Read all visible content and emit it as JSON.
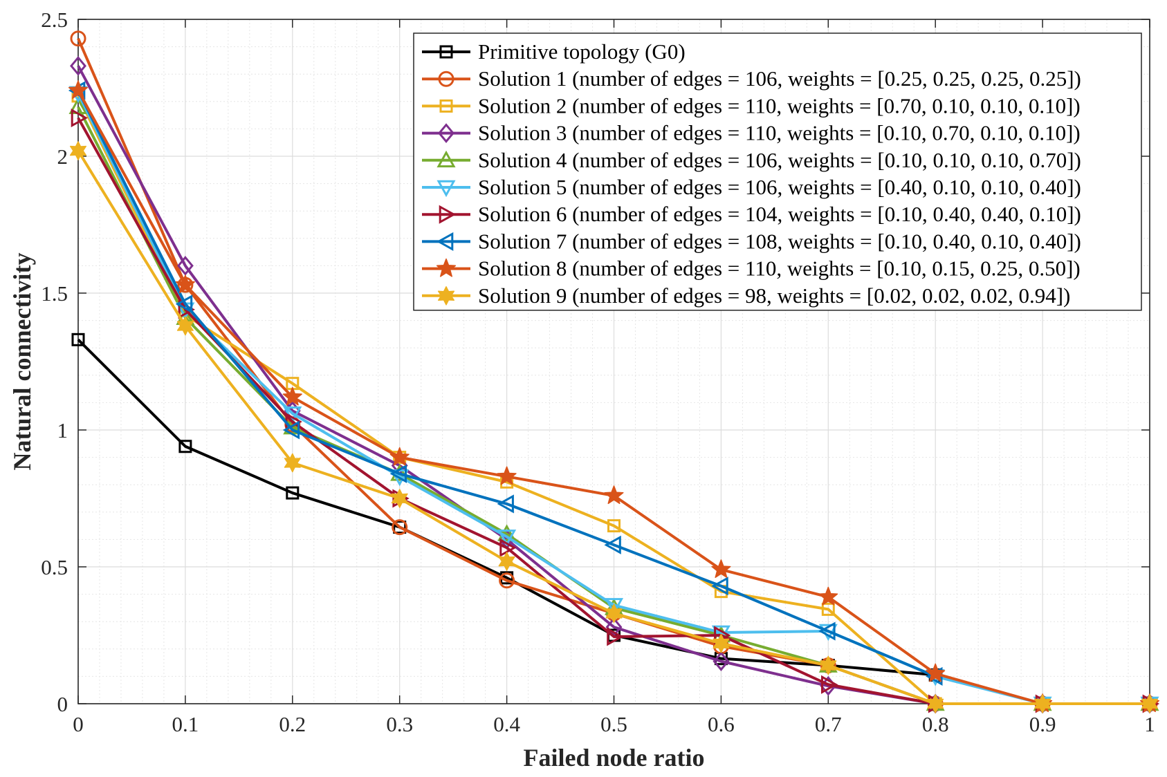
{
  "chart_data": {
    "type": "line",
    "title": "",
    "xlabel": "Failed node ratio",
    "ylabel": "Natural connectivity",
    "xlim": [
      0,
      1
    ],
    "ylim": [
      0,
      2.5
    ],
    "grid": true,
    "minor_grid": true,
    "legend_position": "top-right",
    "x": [
      0,
      0.1,
      0.2,
      0.3,
      0.4,
      0.5,
      0.6,
      0.7,
      0.8,
      0.9,
      1
    ],
    "x_ticks": [
      0,
      0.1,
      0.2,
      0.3,
      0.4,
      0.5,
      0.6,
      0.7,
      0.8,
      0.9,
      1
    ],
    "x_tick_labels": [
      "0",
      "0.1",
      "0.2",
      "0.3",
      "0.4",
      "0.5",
      "0.6",
      "0.7",
      "0.8",
      "0.9",
      "1"
    ],
    "y_ticks": [
      0,
      0.5,
      1,
      1.5,
      2,
      2.5
    ],
    "y_tick_labels": [
      "0",
      "0.5",
      "1",
      "1.5",
      "2",
      "2.5"
    ],
    "series": [
      {
        "name": "Primitive topology (G0)",
        "color": "#000000",
        "marker": "square",
        "x": [
          0,
          0.1,
          0.2,
          0.3,
          0.4,
          0.5,
          0.6,
          0.7,
          0.8
        ],
        "values": [
          1.33,
          0.94,
          0.77,
          0.645,
          0.46,
          0.25,
          0.165,
          0.14,
          0.105
        ]
      },
      {
        "name": "Solution 1 (number of edges = 106, weights = [0.25, 0.25, 0.25, 0.25])",
        "color": "#D95319",
        "marker": "circle",
        "x": [
          0,
          0.1,
          0.2,
          0.3,
          0.4,
          0.5,
          0.6,
          0.7,
          0.8,
          0.9,
          1
        ],
        "values": [
          2.43,
          1.53,
          1.02,
          0.645,
          0.45,
          0.33,
          0.21,
          0.14,
          0,
          0,
          0
        ]
      },
      {
        "name": "Solution 2 (number of edges = 110, weights = [0.70, 0.10, 0.10, 0.10])",
        "color": "#EDB120",
        "marker": "square",
        "x": [
          0,
          0.1,
          0.2,
          0.3,
          0.4,
          0.5,
          0.6,
          0.7,
          0.8,
          0.9,
          1
        ],
        "values": [
          2.22,
          1.42,
          1.17,
          0.9,
          0.81,
          0.65,
          0.41,
          0.345,
          0,
          0,
          0
        ]
      },
      {
        "name": "Solution 3 (number of edges = 110, weights = [0.10, 0.70, 0.10, 0.10])",
        "color": "#7E2F8E",
        "marker": "diamond",
        "x": [
          0,
          0.1,
          0.2,
          0.3,
          0.4,
          0.5,
          0.6,
          0.7,
          0.8,
          0.9,
          1
        ],
        "values": [
          2.33,
          1.6,
          1.07,
          0.87,
          0.6,
          0.28,
          0.155,
          0.065,
          0,
          0,
          0
        ]
      },
      {
        "name": "Solution 4 (number of edges = 106, weights = [0.10, 0.10, 0.10, 0.70])",
        "color": "#77AC30",
        "marker": "triangle-up",
        "x": [
          0,
          0.1,
          0.2,
          0.3,
          0.4,
          0.5,
          0.6,
          0.7,
          0.8,
          0.9,
          1
        ],
        "values": [
          2.18,
          1.41,
          1.01,
          0.84,
          0.62,
          0.35,
          0.25,
          0.14,
          0,
          0,
          0
        ]
      },
      {
        "name": "Solution 5 (number of edges = 106, weights = [0.40, 0.10, 0.10, 0.40])",
        "color": "#4DBEEE",
        "marker": "triangle-down",
        "x": [
          0,
          0.1,
          0.2,
          0.3,
          0.4,
          0.5,
          0.6,
          0.7,
          0.8,
          0.9,
          1
        ],
        "values": [
          2.23,
          1.44,
          1.06,
          0.83,
          0.61,
          0.36,
          0.26,
          0.265,
          0.1,
          0,
          0
        ]
      },
      {
        "name": "Solution 6 (number of edges = 104, weights = [0.10, 0.40, 0.40, 0.10])",
        "color": "#A2142F",
        "marker": "triangle-right",
        "x": [
          0,
          0.1,
          0.2,
          0.3,
          0.4,
          0.5,
          0.6,
          0.7,
          0.8,
          0.9,
          1
        ],
        "values": [
          2.14,
          1.44,
          1.03,
          0.75,
          0.57,
          0.245,
          0.25,
          0.07,
          0,
          0,
          0
        ]
      },
      {
        "name": "Solution 7 (number of edges = 108, weights = [0.10, 0.40, 0.10, 0.40])",
        "color": "#0072BD",
        "marker": "triangle-left",
        "x": [
          0,
          0.1,
          0.2,
          0.3,
          0.4,
          0.5,
          0.6,
          0.7,
          0.8
        ],
        "values": [
          2.24,
          1.46,
          1.0,
          0.84,
          0.73,
          0.58,
          0.43,
          0.265,
          0.1
        ]
      },
      {
        "name": "Solution 8 (number of edges = 110, weights = [0.10, 0.15, 0.25, 0.50])",
        "color": "#D95319",
        "marker": "pentagram",
        "x": [
          0,
          0.1,
          0.2,
          0.3,
          0.4,
          0.5,
          0.6,
          0.7,
          0.8,
          0.9,
          1
        ],
        "values": [
          2.24,
          1.53,
          1.12,
          0.9,
          0.83,
          0.76,
          0.49,
          0.39,
          0.11,
          0,
          0
        ]
      },
      {
        "name": "Solution 9 (number of edges = 98, weights = [0.02, 0.02, 0.02, 0.94])",
        "color": "#EDB120",
        "marker": "hexagram",
        "x": [
          0,
          0.1,
          0.2,
          0.3,
          0.4,
          0.5,
          0.6,
          0.7,
          0.8,
          0.9,
          1
        ],
        "values": [
          2.02,
          1.38,
          0.88,
          0.75,
          0.52,
          0.33,
          0.22,
          0.14,
          0,
          0,
          0
        ]
      }
    ]
  }
}
